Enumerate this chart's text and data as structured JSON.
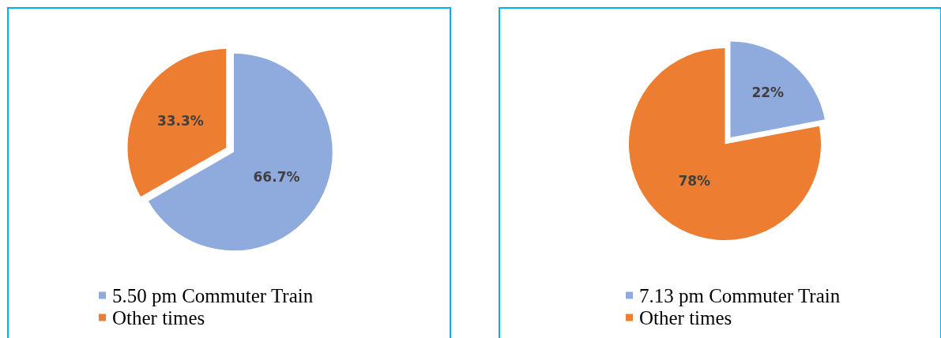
{
  "chart_data": [
    {
      "type": "pie",
      "categories": [
        "5.50 pm Commuter Train",
        "Other times"
      ],
      "values": [
        66.7,
        33.3
      ],
      "colors": [
        "#8faadc",
        "#ed7d31"
      ],
      "value_labels": [
        "66.7%",
        "33.3%"
      ],
      "legend": "bottom"
    },
    {
      "type": "pie",
      "categories": [
        "7.13 pm Commuter Train",
        "Other times"
      ],
      "values": [
        22,
        78
      ],
      "colors": [
        "#8faadc",
        "#ed7d31"
      ],
      "value_labels": [
        "22%",
        "78%"
      ],
      "legend": "bottom"
    }
  ]
}
